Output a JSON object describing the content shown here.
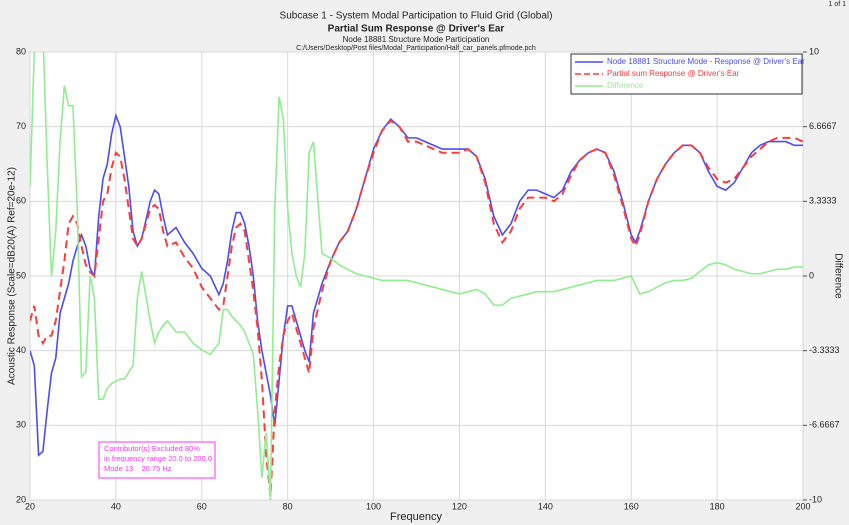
{
  "chart_data": {
    "type": "line",
    "page_label": "1 of 1",
    "title": "Subcase 1 - System Modal Participation to Fluid Grid (Global)",
    "subtitle": "Partial Sum Response @ Driver's Ear",
    "subtitle2": "Node 18881 Structure Mode Participation",
    "file_path": "C:/Users/Desktop/Post files/Modal_Participation/Half_car_panels.pfmode.pch",
    "x_label": "Frequency",
    "y_label": "Acoustic Response (Scale=dB20(A) Ref=20e-12)",
    "y2_label": "Difference",
    "xlim": [
      20,
      200
    ],
    "xticks": [
      20,
      40,
      60,
      80,
      100,
      120,
      140,
      160,
      180,
      200
    ],
    "ylim": [
      20,
      80
    ],
    "yticks": [
      20,
      30,
      40,
      50,
      60,
      70,
      80
    ],
    "y2lim": [
      -10,
      10
    ],
    "y2ticks": [
      -10,
      -6.6667,
      -3.3333,
      0,
      3.3333,
      6.6667,
      10
    ],
    "grid": true,
    "legend_position": "upper-right",
    "annotations": [
      "Contributor(s) Excluded 80%",
      "in frequency range 20.0 to 200.0",
      "Mode 13    26.75 Hz"
    ],
    "x": [
      20,
      21,
      22,
      23,
      24,
      25,
      26,
      27,
      28,
      29,
      30,
      31,
      32,
      33,
      34,
      35,
      36,
      37,
      38,
      39,
      40,
      41,
      42,
      43,
      44,
      45,
      46,
      48,
      49,
      50,
      51,
      52,
      54,
      56,
      58,
      60,
      62,
      64,
      65,
      66,
      67,
      68,
      69,
      70,
      71,
      72,
      73,
      74,
      75,
      76,
      77,
      78,
      79,
      80,
      81,
      82,
      83,
      84,
      85,
      86,
      88,
      90,
      92,
      94,
      96,
      98,
      100,
      102,
      104,
      106,
      108,
      110,
      112,
      114,
      116,
      118,
      120,
      122,
      124,
      126,
      128,
      130,
      132,
      134,
      136,
      138,
      140,
      142,
      144,
      146,
      148,
      150,
      152,
      154,
      156,
      158,
      160,
      161,
      162,
      164,
      166,
      168,
      170,
      172,
      174,
      176,
      178,
      180,
      182,
      184,
      186,
      188,
      190,
      192,
      194,
      196,
      198,
      200
    ],
    "series": [
      {
        "name": "Node 18881 Structure Mode - Response @ Driver's Ear",
        "color": "#4b4bff",
        "dashed": false,
        "axis": "y",
        "values": [
          40,
          38,
          26,
          26.5,
          32,
          37,
          39,
          45,
          47,
          49,
          52,
          54,
          55.5,
          54,
          51,
          50,
          58,
          63,
          65,
          69,
          71.5,
          70,
          66,
          62,
          56,
          54,
          55,
          60,
          61.5,
          61,
          58,
          55.5,
          56.5,
          54.5,
          53,
          51,
          50,
          47.5,
          49,
          52,
          56,
          58.5,
          58.5,
          57,
          54,
          50,
          44,
          40,
          37,
          34,
          30,
          36,
          42,
          46,
          46,
          44,
          42,
          40,
          38.5,
          45,
          49,
          52,
          54.5,
          56,
          59,
          63,
          67,
          69.5,
          71,
          70,
          68.5,
          68.5,
          68,
          67.5,
          67,
          67,
          67,
          67,
          66,
          63,
          58,
          55.5,
          57,
          60,
          61.5,
          61.5,
          61,
          60.5,
          61.5,
          64,
          65.5,
          66.5,
          67,
          66.5,
          64,
          60,
          55.5,
          54.5,
          56,
          60,
          63,
          65,
          66.5,
          67.5,
          67.5,
          66.5,
          64,
          62,
          61.5,
          62.5,
          64.5,
          66.5,
          67.5,
          68,
          68,
          68,
          67.5,
          67.5
        ]
      },
      {
        "name": "Partial sum Response @ Driver's Ear",
        "color": "#ff3b3b",
        "dashed": true,
        "axis": "y",
        "values": [
          44,
          46,
          42,
          41,
          42,
          42,
          44,
          48,
          52,
          57,
          58,
          57,
          54,
          51.5,
          50.5,
          50,
          55,
          60,
          61,
          64.5,
          66.5,
          66,
          63,
          59,
          55,
          54,
          55,
          59,
          59.5,
          59,
          56,
          54,
          54.5,
          52.5,
          51,
          48.5,
          47,
          45.5,
          46,
          50,
          54,
          56.5,
          57,
          56,
          52,
          48,
          43,
          36,
          26,
          20.5,
          32,
          38,
          42,
          44,
          45,
          43,
          41,
          39,
          37,
          43,
          48,
          52,
          54.5,
          56,
          59,
          63,
          66.5,
          69.5,
          70.8,
          70,
          68,
          68,
          67.5,
          67,
          66.5,
          66.5,
          66.5,
          67,
          66,
          62.5,
          57,
          54.5,
          56,
          59,
          60.5,
          60.5,
          60.5,
          60,
          61,
          63.5,
          65.5,
          66.5,
          67,
          66.5,
          63.5,
          59.5,
          55,
          54,
          55.5,
          60,
          63,
          65,
          66.5,
          67.5,
          67.5,
          66.5,
          64.5,
          63,
          62.5,
          63,
          64.5,
          66,
          67,
          68,
          68.5,
          68.5,
          68.5,
          68
        ]
      },
      {
        "name": "Difference",
        "color": "#90ee90",
        "dashed": false,
        "axis": "y2",
        "values": [
          4,
          10,
          12,
          11,
          5,
          0,
          2,
          6,
          8.5,
          7.6,
          7.6,
          3,
          -4.5,
          -4.3,
          0,
          -1,
          -5.5,
          -5.5,
          -5,
          -4.8,
          -4.7,
          -4.6,
          -4.6,
          -4.3,
          -4,
          -1,
          0.2,
          -2,
          -3,
          -2.5,
          -2.2,
          -2,
          -2.5,
          -2.5,
          -3,
          -3.3,
          -3.5,
          -3,
          -1.5,
          -1.5,
          -1.8,
          -2,
          -2.2,
          -2.5,
          -3,
          -3.5,
          -6,
          -9,
          -7,
          -10,
          3,
          8,
          7,
          3,
          1,
          0,
          -0.5,
          1,
          5.5,
          6,
          1,
          0.8,
          0.5,
          0.3,
          0.1,
          0,
          -0.1,
          -0.2,
          -0.2,
          -0.2,
          -0.2,
          -0.3,
          -0.4,
          -0.5,
          -0.6,
          -0.7,
          -0.8,
          -0.7,
          -0.6,
          -0.8,
          -1.3,
          -1.3,
          -1,
          -0.9,
          -0.8,
          -0.7,
          -0.7,
          -0.7,
          -0.6,
          -0.5,
          -0.4,
          -0.3,
          -0.2,
          -0.2,
          -0.2,
          -0.1,
          0,
          -0.4,
          -0.8,
          -0.7,
          -0.5,
          -0.3,
          -0.2,
          -0.2,
          -0.1,
          0.2,
          0.5,
          0.6,
          0.5,
          0.3,
          0.2,
          0.1,
          0.1,
          0.2,
          0.3,
          0.3,
          0.4,
          0.4
        ]
      }
    ]
  }
}
